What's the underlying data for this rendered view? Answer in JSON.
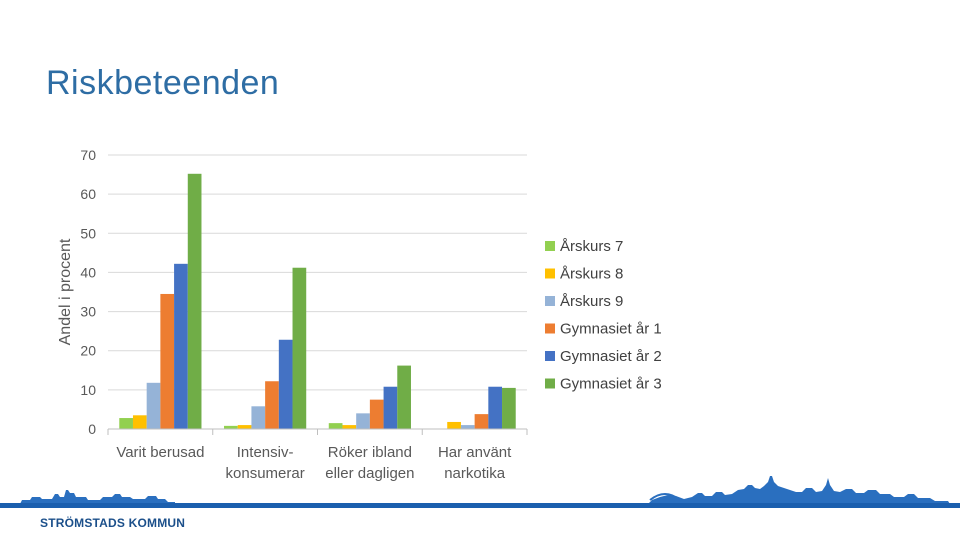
{
  "slide": {
    "title": "Riskbeteenden",
    "brand": "STRÖMSTADS KOMMUN"
  },
  "chart_data": {
    "type": "bar",
    "title": "",
    "xlabel": "",
    "ylabel": "Andel i procent",
    "ylim": [
      0,
      70
    ],
    "yticks": [
      0,
      10,
      20,
      30,
      40,
      50,
      60,
      70
    ],
    "grid": true,
    "legend": "right",
    "categories": [
      [
        "Varit berusad"
      ],
      [
        "Intensiv-",
        "konsumerar"
      ],
      [
        "Röker ibland",
        "eller dagligen"
      ],
      [
        "Har använt",
        "narkotika"
      ]
    ],
    "series": [
      {
        "name": "Årskurs 7",
        "color": "#92d050",
        "values": [
          2.8,
          0.8,
          1.5,
          0.0
        ]
      },
      {
        "name": "Årskurs 8",
        "color": "#ffc000",
        "values": [
          3.5,
          1.0,
          1.0,
          1.8
        ]
      },
      {
        "name": "Årskurs 9",
        "color": "#95b3d7",
        "values": [
          11.8,
          5.8,
          4.0,
          1.0
        ]
      },
      {
        "name": "Gymnasiet år 1",
        "color": "#ed7d31",
        "values": [
          34.5,
          12.2,
          7.5,
          3.8
        ]
      },
      {
        "name": "Gymnasiet år 2",
        "color": "#4472c4",
        "values": [
          42.2,
          22.8,
          10.8,
          10.8
        ]
      },
      {
        "name": "Gymnasiet år 3",
        "color": "#70ad47",
        "values": [
          65.2,
          41.2,
          16.2,
          10.5
        ]
      }
    ]
  }
}
